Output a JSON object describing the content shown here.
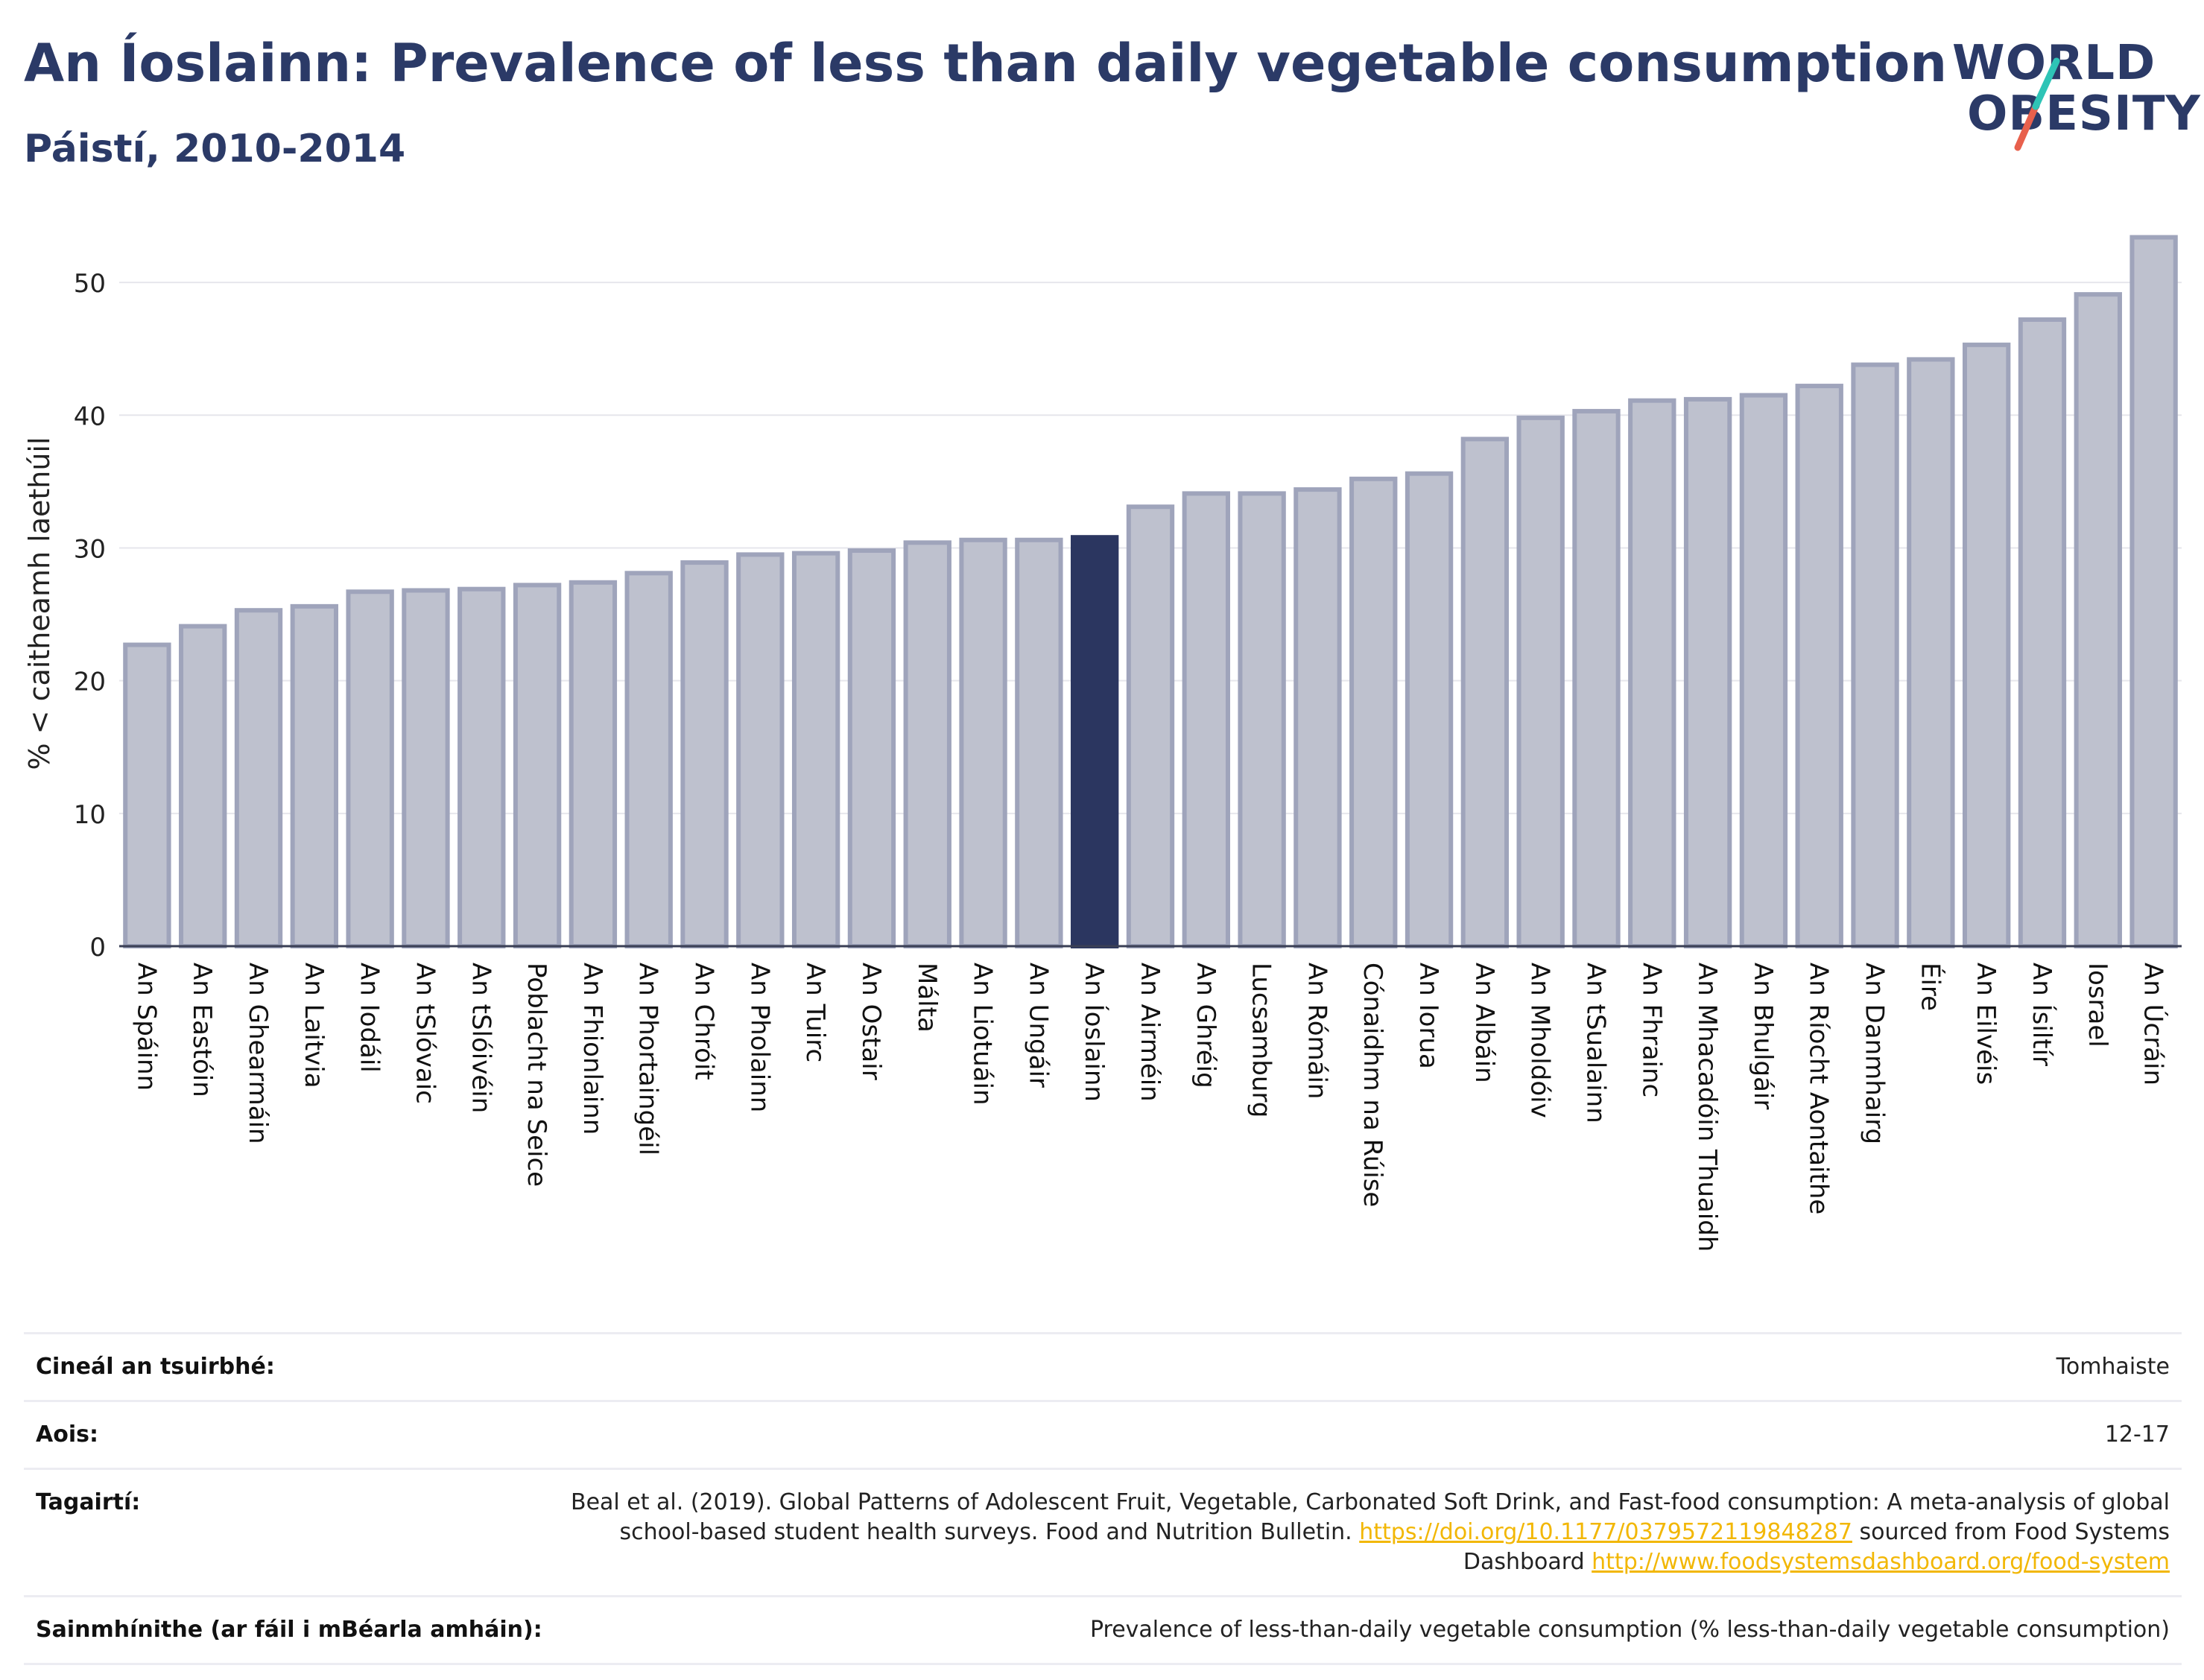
{
  "header": {
    "title": "An Íoslainn: Prevalence of less than daily vegetable consumption",
    "subtitle": "Páistí, 2010-2014"
  },
  "logo": {
    "line1": "WORLD",
    "line2": "OBESITY",
    "accent_teal": "#2ec4b6",
    "accent_red": "#e8604c"
  },
  "chart_data": {
    "type": "bar",
    "ylabel": "% < caitheamh laethúil",
    "ylim": [
      0,
      55
    ],
    "yticks": [
      0,
      10,
      20,
      30,
      40,
      50
    ],
    "grid": true,
    "highlight": "An Íoslainn",
    "colors": {
      "bar": "#bec1ce",
      "bar_edge": "#9fa4bb",
      "highlight": "#2b3660"
    },
    "categories": [
      "An Spáinn",
      "An Eastóin",
      "An Ghearmáin",
      "An Laitvia",
      "An Iodáil",
      "An tSlóvaic",
      "An tSlóivéin",
      "Poblacht na Seice",
      "An Fhionlainn",
      "An Phortaingéil",
      "An Chróit",
      "An Pholainn",
      "An Tuirc",
      "An Ostair",
      "Málta",
      "An Liotuáin",
      "An Ungáir",
      "An Íoslainn",
      "An Airméin",
      "An Ghréig",
      "Lucsamburg",
      "An Rómáin",
      "Cónaidhm na Rúise",
      "An Iorua",
      "An Albáin",
      "An Mholdóiv",
      "An tSualainn",
      "An Fhrainc",
      "An Mhacadóin Thuaidh",
      "An Bhulgáir",
      "An Ríocht Aontaithe",
      "An Danmhairg",
      "Éire",
      "An Eilvéis",
      "An Ísiltír",
      "Iosrael",
      "An Úcráin"
    ],
    "values": [
      22.7,
      24.1,
      25.3,
      25.6,
      26.7,
      26.8,
      26.9,
      27.2,
      27.4,
      28.1,
      28.9,
      29.5,
      29.6,
      29.8,
      30.4,
      30.6,
      30.6,
      30.8,
      33.1,
      34.1,
      34.1,
      34.4,
      35.2,
      35.6,
      38.2,
      39.8,
      40.3,
      41.1,
      41.2,
      41.5,
      42.2,
      43.8,
      44.2,
      45.3,
      47.2,
      49.1,
      53.4
    ]
  },
  "info": {
    "survey_type_label": "Cineál an tsuirbhé:",
    "survey_type_value": "Tomhaiste",
    "age_label": "Aois:",
    "age_value": "12-17",
    "references_label": "Tagairtí:",
    "references_text_1": "Beal et al. (2019). Global Patterns of Adolescent Fruit, Vegetable, Carbonated Soft Drink, and Fast-food consumption: A meta-analysis of global school-based student health surveys. Food and Nutrition Bulletin. ",
    "references_link_1": "https://doi.org/10.1177/0379572119848287",
    "references_text_2": " sourced from Food Systems Dashboard ",
    "references_link_2": "http://www.foodsystemsdashboard.org/food-system",
    "definitions_label": "Sainmhínithe (ar fáil i mBéarla amháin):",
    "definitions_value": "Prevalence of less-than-daily vegetable consumption (% less-than-daily vegetable consumption)"
  }
}
